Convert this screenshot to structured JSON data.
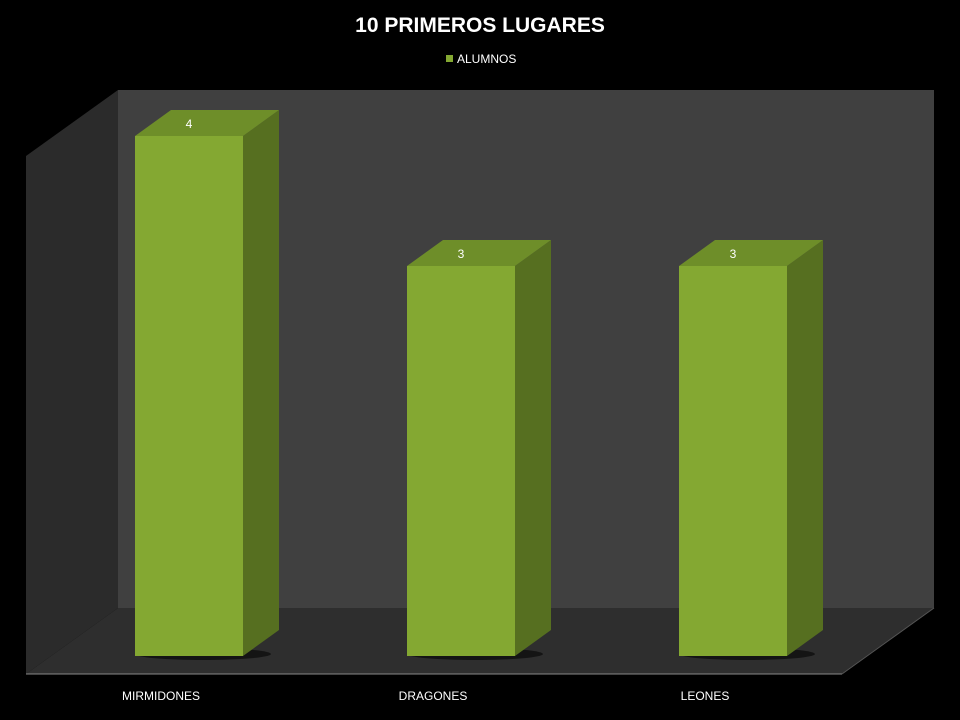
{
  "colors": {
    "background": "#000000",
    "back_wall": "#404040",
    "side_wall": "#2b2b2b",
    "floor": "#2e2e2e",
    "bar_front": "#84a832",
    "bar_top": "#6e8e29",
    "bar_side": "#566f20",
    "text": "#ffffff"
  },
  "chart_data": {
    "type": "bar",
    "style": "3d-column",
    "title": "10 PRIMEROS LUGARES",
    "categories": [
      "MIRMIDONES",
      "DRAGONES",
      "LEONES"
    ],
    "series": [
      {
        "name": "ALUMNOS",
        "values": [
          4,
          3,
          3
        ],
        "data_labels": [
          "4",
          "3",
          "3"
        ]
      }
    ],
    "legend": {
      "position": "top",
      "entries": [
        "ALUMNOS"
      ]
    },
    "ylim": [
      0,
      4
    ],
    "grid": false,
    "y_axis_visible": false
  }
}
